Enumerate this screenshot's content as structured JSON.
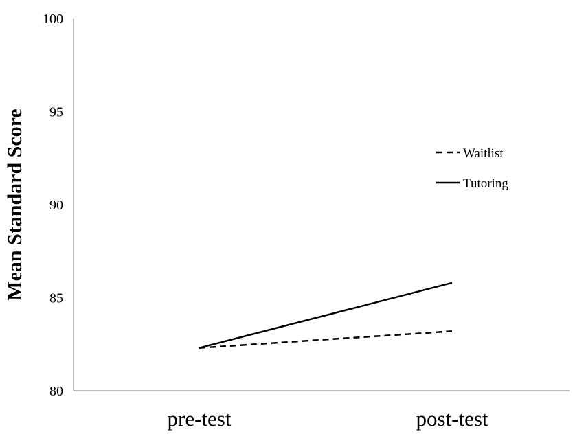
{
  "chart_data": {
    "type": "line",
    "title": "",
    "xlabel": "",
    "ylabel": "Mean Standard Score",
    "categories": [
      "pre-test",
      "post-test"
    ],
    "ylim": [
      80,
      100
    ],
    "yticks": [
      80,
      85,
      90,
      95,
      100
    ],
    "grid": false,
    "legend_position": "right",
    "series": [
      {
        "name": "Waitlist",
        "values": [
          82.3,
          83.2
        ],
        "style": "dashed",
        "color": "#000000"
      },
      {
        "name": "Tutoring",
        "values": [
          82.3,
          85.8
        ],
        "style": "solid",
        "color": "#000000"
      }
    ]
  }
}
